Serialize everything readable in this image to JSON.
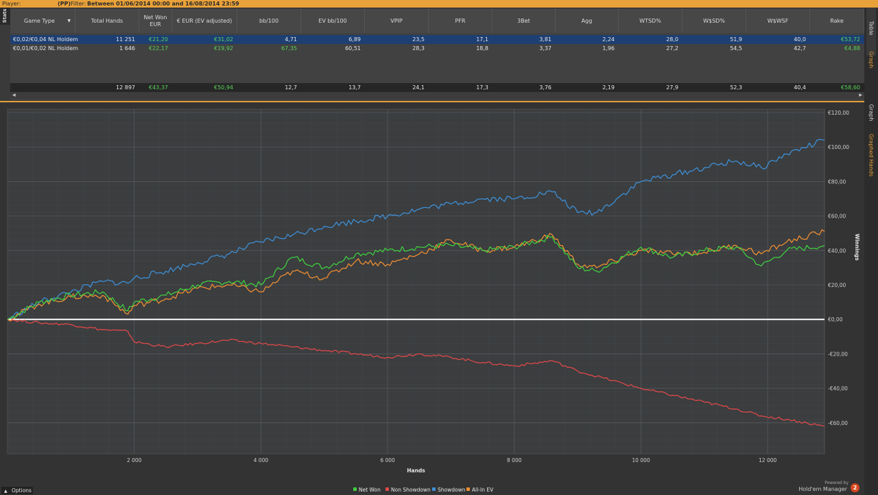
{
  "topbar": {
    "player_label": "Player:",
    "pp": "(PP)",
    "filter_label": "Filter:",
    "filter_value": "Between 01/06/2014 00:00 and 16/08/2014 23:59"
  },
  "sidetab": {
    "stats": "Stats"
  },
  "table": {
    "columns": [
      "Game Type",
      "Total Hands",
      "Net Won EUR",
      "€ EUR (EV adjusted)",
      "bb/100",
      "EV bb/100",
      "VPIP",
      "PFR",
      "3Bet",
      "Agg",
      "WTSD%",
      "W$SD%",
      "W$WSF",
      "Rake"
    ],
    "rows": [
      [
        "€0,02/€0,04 NL Holdem",
        "11 251",
        "€21,20",
        "€31,02",
        "4,71",
        "6,89",
        "23,5",
        "17,1",
        "3,81",
        "2,24",
        "28,0",
        "51,9",
        "40,0",
        "€53,72"
      ],
      [
        "€0,01/€0,02 NL Holdem",
        "1 646",
        "€22,17",
        "€19,92",
        "67,35",
        "60,51",
        "28,3",
        "18,8",
        "3,37",
        "1,96",
        "27,2",
        "54,5",
        "42,7",
        "€4,88"
      ]
    ],
    "totals": [
      "",
      "12 897",
      "€43,37",
      "€50,94",
      "12,7",
      "13,7",
      "24,1",
      "17,3",
      "3,76",
      "2,19",
      "27,9",
      "52,3",
      "40,4",
      "€58,60"
    ]
  },
  "right_tabs": {
    "table": "Table",
    "graph_top": "Graph",
    "graph": "Graph",
    "graphed_hands": "Graphed Hands"
  },
  "colors": {
    "net_won": "#3fce3f",
    "non_showdown": "#e04848",
    "showdown": "#3d8fd6",
    "allin_ev": "#ee8e32",
    "accent": "#e9a23a"
  },
  "chart_data": {
    "type": "line",
    "xlabel": "Hands",
    "ylabel": "Winnings",
    "xlim": [
      0,
      12897
    ],
    "ylim": [
      -78,
      122
    ],
    "x_ticks": [
      2000,
      4000,
      6000,
      8000,
      10000,
      12000
    ],
    "x_tick_labels": [
      "2 000",
      "4 000",
      "6 000",
      "8 000",
      "10 000",
      "12 000"
    ],
    "y_ticks": [
      120,
      100,
      80,
      60,
      40,
      20,
      0,
      -20,
      -40,
      -60
    ],
    "y_tick_labels": [
      "€120,00",
      "€100,00",
      "€80,00",
      "€60,00",
      "€40,00",
      "€20,00",
      "€0,00",
      "-€20,00",
      "-€40,00",
      "-€60,00"
    ],
    "x": [
      0,
      500,
      1000,
      1500,
      1900,
      2000,
      2500,
      3000,
      3500,
      4000,
      4500,
      5000,
      5500,
      6000,
      6500,
      7000,
      7500,
      8000,
      8600,
      9000,
      9300,
      10000,
      10500,
      11000,
      11500,
      11900,
      12300,
      12897
    ],
    "series": [
      {
        "name": "Net Won",
        "values": [
          0,
          10,
          14,
          16,
          5,
          10,
          14,
          20,
          22,
          20,
          36,
          30,
          38,
          40,
          42,
          43,
          40,
          42,
          48,
          30,
          28,
          42,
          36,
          40,
          42,
          31,
          40,
          43
        ]
      },
      {
        "name": "Non Showdown",
        "values": [
          0,
          -2,
          -3,
          -6,
          -7,
          -13,
          -16,
          -14,
          -12,
          -14,
          -16,
          -18,
          -20,
          -22,
          -20,
          -22,
          -25,
          -27,
          -24,
          -30,
          -33,
          -40,
          -44,
          -48,
          -52,
          -56,
          -58,
          -62
        ]
      },
      {
        "name": "Showdown",
        "values": [
          0,
          10,
          16,
          22,
          21,
          24,
          28,
          33,
          38,
          45,
          49,
          54,
          57,
          60,
          64,
          67,
          70,
          70,
          74,
          62,
          62,
          80,
          84,
          88,
          92,
          88,
          96,
          104
        ]
      },
      {
        "name": "All-In EV",
        "values": [
          0,
          9,
          13,
          14,
          3,
          8,
          12,
          18,
          20,
          16,
          28,
          24,
          34,
          32,
          38,
          46,
          40,
          42,
          49,
          32,
          30,
          40,
          38,
          39,
          43,
          38,
          45,
          51
        ]
      }
    ],
    "grid": true,
    "legend_position": "bottom-center"
  },
  "bottom": {
    "options": "Options",
    "powered_by": "Powered by",
    "brand": "Hold'em Manager",
    "brand_num": "2"
  }
}
